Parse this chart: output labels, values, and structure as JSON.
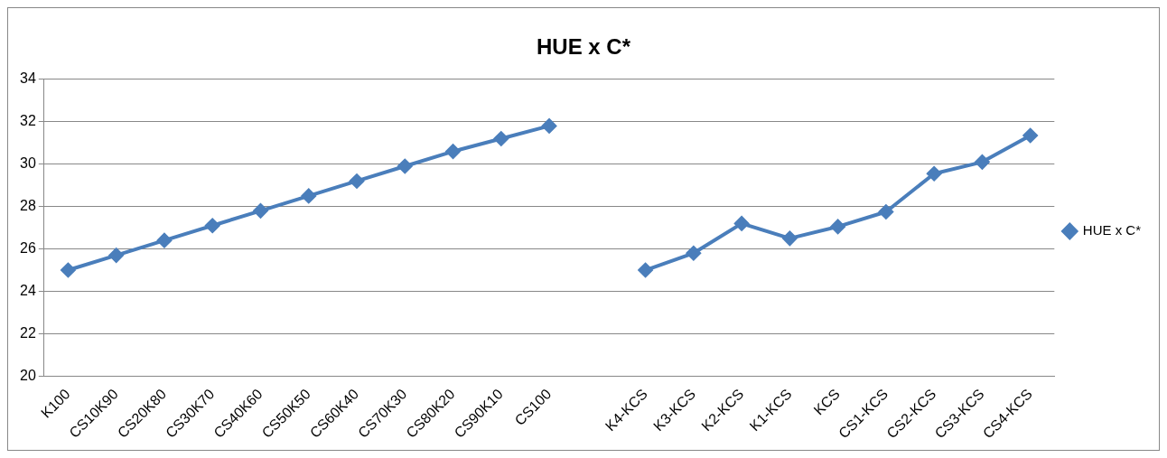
{
  "chart_data": {
    "type": "line",
    "title": "HUE x C*",
    "categories": [
      "K100",
      "CS10K90",
      "CS20K80",
      "CS30K70",
      "CS40K60",
      "CS50K50",
      "CS60K40",
      "CS70K30",
      "CS80K20",
      "CS90K10",
      "CS100",
      null,
      "K4-KCS",
      "K3-KCS",
      "K2-KCS",
      "K1-KCS",
      "KCS",
      "CS1-KCS",
      "CS2-KCS",
      "CS3-KCS",
      "CS4-KCS"
    ],
    "series": [
      {
        "name": "HUE x C*",
        "color": "#4a7ebb",
        "values": [
          25,
          25.7,
          26.4,
          27.1,
          27.8,
          28.5,
          29.2,
          29.9,
          30.6,
          31.2,
          31.8,
          null,
          25,
          25.8,
          27.2,
          26.5,
          27.05,
          27.75,
          29.55,
          30.1,
          31.35
        ]
      }
    ],
    "ylim": [
      20,
      34
    ],
    "yticks": [
      20,
      22,
      24,
      26,
      28,
      30,
      32,
      34
    ],
    "grid": "y",
    "legend": "right",
    "marker": "diamond",
    "line_style": "solid"
  }
}
